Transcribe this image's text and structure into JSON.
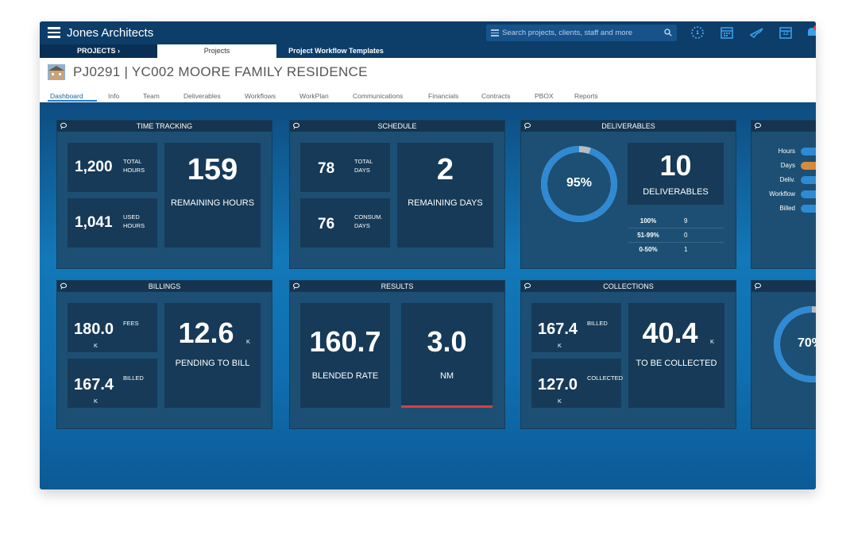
{
  "app": {
    "title": "Jones Architects"
  },
  "search": {
    "placeholder": "Search projects, clients, staff and more"
  },
  "topicons": [
    "loading-timer-icon",
    "calendar-icon",
    "plane-icon",
    "calendar-day-icon",
    "bell-icon"
  ],
  "calendar_day": "12",
  "nav": {
    "projects_menu": "PROJECTS  ›",
    "projects_tab": "Projects",
    "templates_tab": "Project Workflow Templates"
  },
  "project": {
    "title": "PJ0291 | YC002 MOORE FAMILY RESIDENCE"
  },
  "subtabs": [
    "Dashboard",
    "Info",
    "Team",
    "Deliverables",
    "Workflows",
    "WorkPlan",
    "Communications",
    "Financials",
    "Contracts",
    "PBOX",
    "Reports"
  ],
  "time_tracking": {
    "title": "TIME TRACKING",
    "total_hours": "1,200",
    "total_hours_label": "TOTAL HOURS",
    "used_hours": "1,041",
    "used_hours_label": "USED HOURS",
    "remaining": "159",
    "remaining_label": "REMAINING HOURS"
  },
  "schedule": {
    "title": "SCHEDULE",
    "total_days": "78",
    "total_days_label": "TOTAL DAYS",
    "consum_days": "76",
    "consum_days_label": "CONSUM. DAYS",
    "remaining": "2",
    "remaining_label": "REMAINING DAYS"
  },
  "deliverables": {
    "title": "DELIVERABLES",
    "percent": "95%",
    "percent_value": 0.95,
    "count": "10",
    "count_label": "DELIVERABLES",
    "rows": [
      {
        "k": "100%",
        "v": "9"
      },
      {
        "k": "51-99%",
        "v": "0"
      },
      {
        "k": "0-50%",
        "v": "1"
      }
    ]
  },
  "fourth_panel": {
    "legend": [
      "Hours",
      "Days",
      "Deliv.",
      "Workflow",
      "Billed"
    ]
  },
  "billings": {
    "title": "BILLINGS",
    "fees": "180.0",
    "fees_label": "FEES",
    "billed": "167.4",
    "billed_label": "BILLED",
    "pending": "12.6",
    "pending_label": "PENDING TO BILL",
    "unit": "K"
  },
  "results": {
    "title": "RESULTS",
    "blended": "160.7",
    "blended_label": "BLENDED RATE",
    "nm": "3.0",
    "nm_label": "NM"
  },
  "collections": {
    "title": "COLLECTIONS",
    "billed": "167.4",
    "billed_label": "BILLED",
    "collected": "127.0",
    "collected_label": "COLLECTED",
    "to_collect": "40.4",
    "to_collect_label": "TO BE COLLECTED",
    "unit": "K"
  },
  "eighth_panel": {
    "percent": "70%",
    "percent_value": 0.7
  },
  "colors": {
    "ring": "#2f8ad3",
    "ring_bg": "#b5bcc4",
    "red": "#e23b3b",
    "tile": "#163a58",
    "panel": "#1c4f73"
  }
}
